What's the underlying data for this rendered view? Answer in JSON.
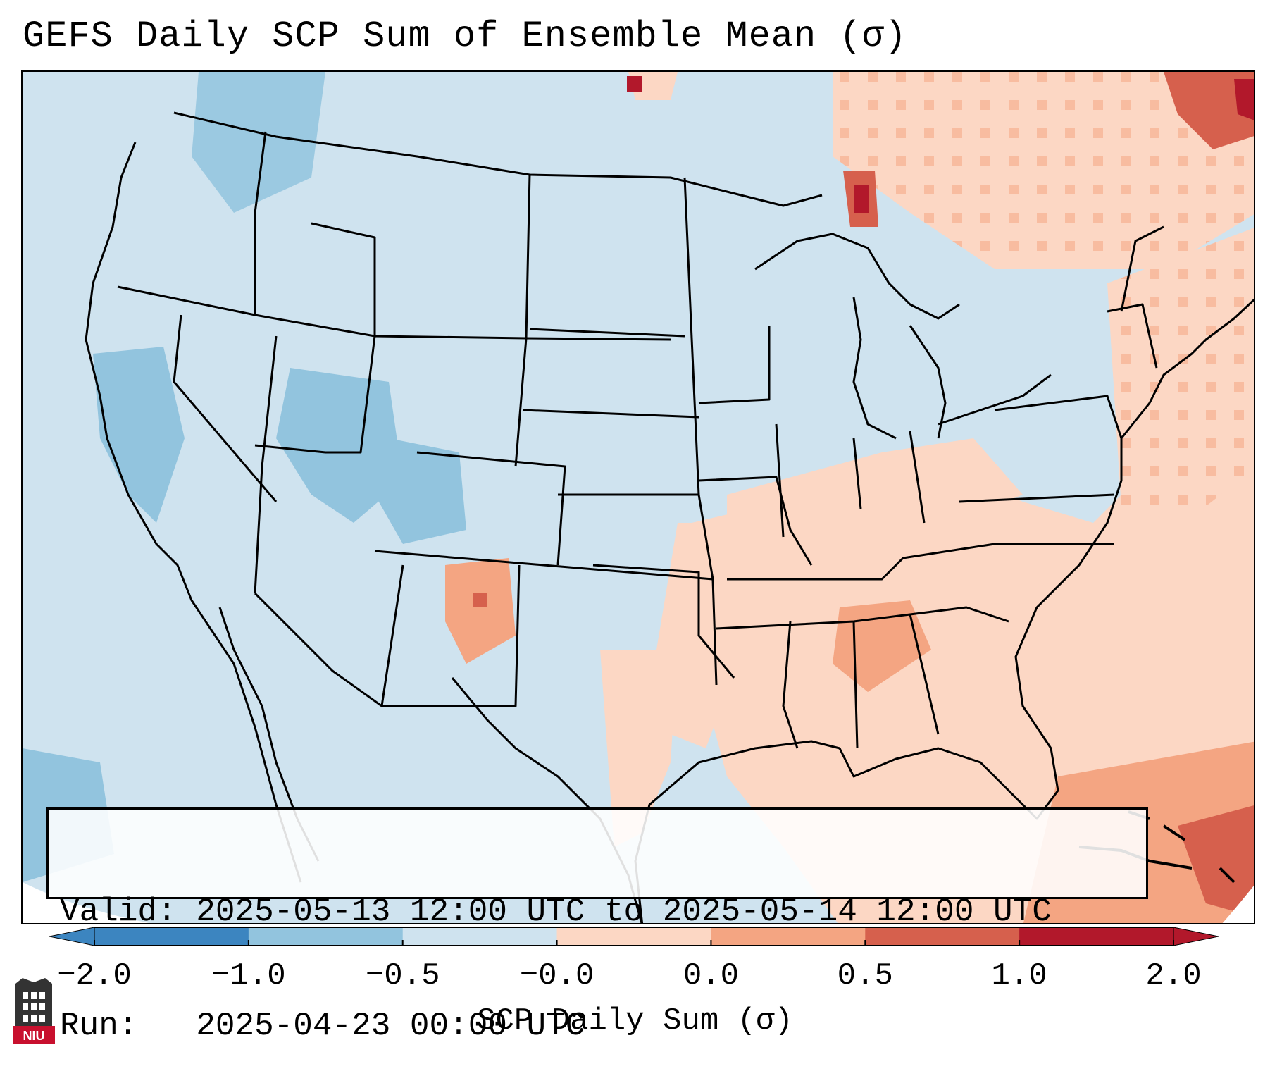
{
  "title": "GEFS Daily SCP Sum of Ensemble Mean (σ)",
  "info": {
    "valid_label": "Valid:",
    "valid_value": "2025-05-13 12:00 UTC to 2025-05-14 12:00 UTC",
    "run_label": "Run:",
    "run_value": "2025-04-23 00:00 UTC"
  },
  "colorbar": {
    "label": "SCP Daily Sum (σ)",
    "ticks": [
      "−2.0",
      "−1.0",
      "−0.5",
      "−0.0",
      "0.0",
      "0.5",
      "1.0",
      "2.0"
    ],
    "colors": [
      "#3c85c0",
      "#92c4de",
      "#cfe3ef",
      "#fcd7c4",
      "#f4a582",
      "#d6604d",
      "#b2182b"
    ],
    "extend": "both"
  },
  "map": {
    "background_color": "#cfe3ef",
    "anomaly_colors": {
      "weak_negative": "#cfe3ef",
      "negative": "#92c4de",
      "strong_negative": "#3c85c0",
      "weak_positive": "#fcd7c4",
      "positive": "#f4a582",
      "strong_positive": "#d6604d",
      "extreme_positive": "#b2182b"
    },
    "regions": [
      {
        "name": "Upper Peninsula Michigan",
        "level": "strong_positive"
      },
      {
        "name": "Northern Maine / Quebec",
        "level": "strong_positive"
      },
      {
        "name": "Southeast US / Gulf Coast",
        "level": "weak_positive"
      },
      {
        "name": "Western Atlantic",
        "level": "weak_positive"
      },
      {
        "name": "Utah / Colorado",
        "level": "negative"
      },
      {
        "name": "Northern Rockies",
        "level": "negative"
      },
      {
        "name": "Eastern New Mexico",
        "level": "positive"
      },
      {
        "name": "Caribbean",
        "level": "positive"
      }
    ]
  },
  "logo": {
    "text": "NIU"
  }
}
